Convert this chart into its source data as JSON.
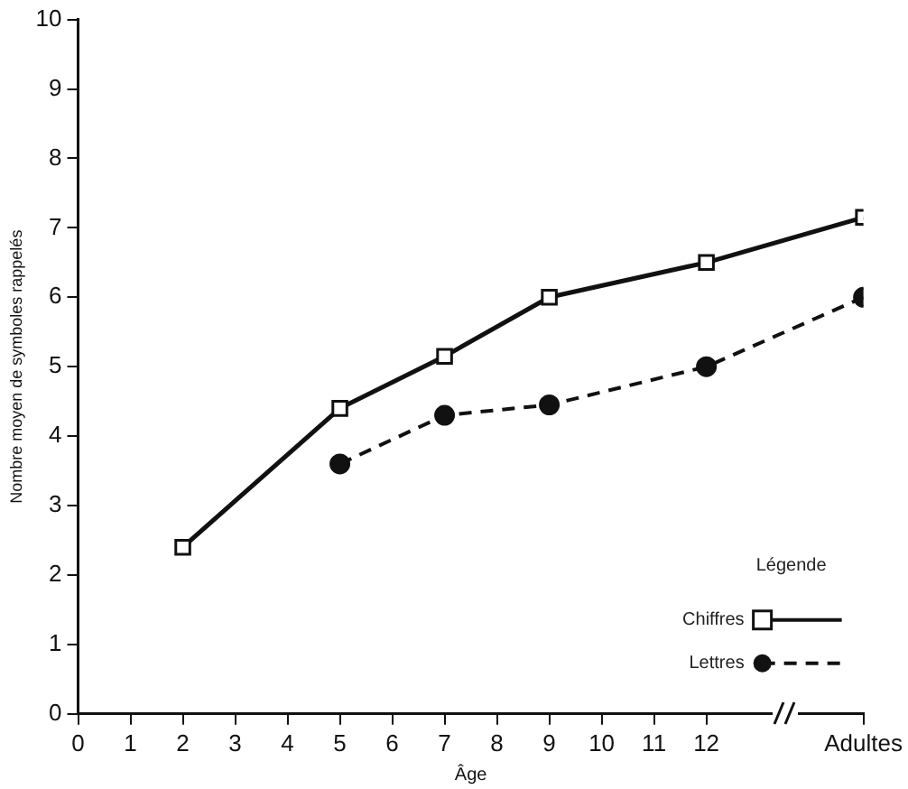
{
  "chart_data": {
    "type": "line",
    "xlabel": "Âge",
    "ylabel": "Nombre moyen de symboles rappelés",
    "legend_title": "Légende",
    "legend": "bottom right",
    "x": [
      2,
      5,
      7,
      9,
      12,
      15
    ],
    "xlim": [
      0,
      15
    ],
    "xticks": [
      0,
      1,
      2,
      3,
      4,
      5,
      6,
      7,
      8,
      9,
      10,
      11,
      12,
      {
        "value": 15,
        "label": "Adultes"
      }
    ],
    "ylim": [
      0,
      10
    ],
    "yticks": [
      0,
      1,
      2,
      3,
      4,
      5,
      6,
      7,
      8,
      9,
      10
    ],
    "grid": false,
    "series": [
      {
        "name": "Chiffres",
        "color": "#111111",
        "marker": "square",
        "line_style": "solid",
        "values": [
          2.4,
          4.4,
          5.15,
          6.0,
          6.5,
          7.15
        ]
      },
      {
        "name": "Lettres",
        "color": "#111111",
        "marker": "circle",
        "line_style": "dashed",
        "values": [
          null,
          3.6,
          4.3,
          4.45,
          5.0,
          6.0
        ]
      }
    ]
  }
}
